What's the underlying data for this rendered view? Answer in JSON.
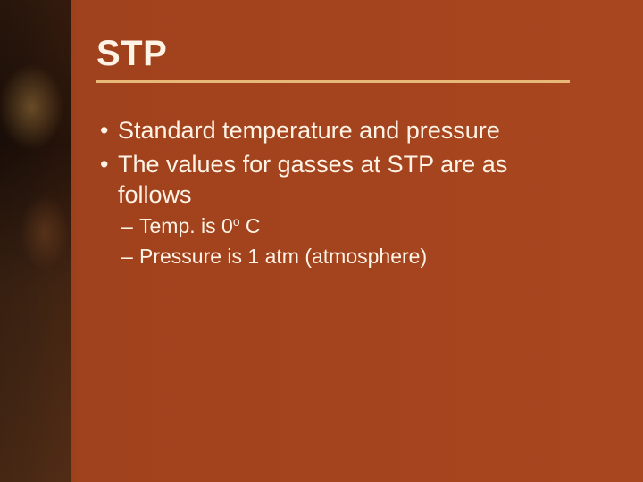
{
  "slide": {
    "background_gradient": [
      "#1a0e08",
      "#a8461f"
    ],
    "title_color": "#fff3e6",
    "text_color": "#fff3e6",
    "underline_color": "#e8b878",
    "title_fontsize": 40,
    "body_fontsize": 27,
    "sub_fontsize": 23,
    "title": "STP",
    "bullets": [
      {
        "level": 1,
        "text": "Standard temperature and pressure"
      },
      {
        "level": 1,
        "text": "The values for gasses at STP are as follows"
      },
      {
        "level": 2,
        "text_pre": "Temp. is 0",
        "super": "o",
        "text_post": " C"
      },
      {
        "level": 2,
        "text": "Pressure is 1 atm (atmosphere)"
      }
    ]
  }
}
